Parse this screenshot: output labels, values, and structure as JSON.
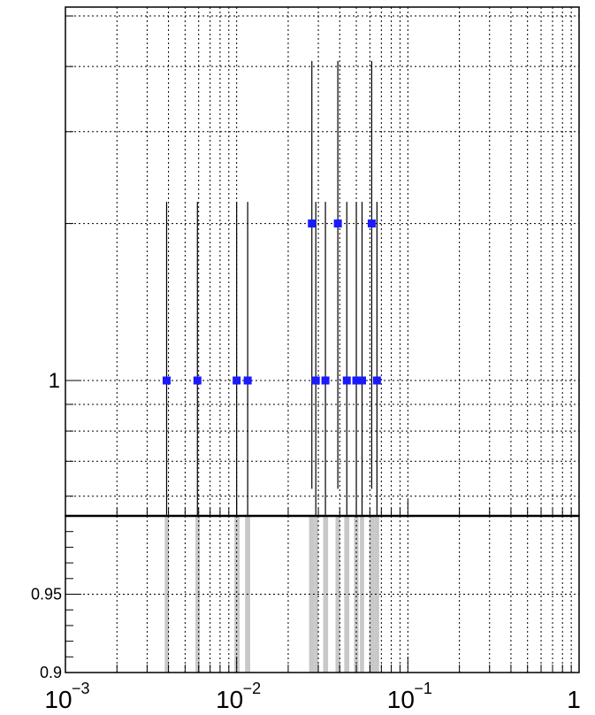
{
  "chart_data": [
    {
      "panel": "top",
      "type": "scatter",
      "title": "",
      "xlabel": "",
      "ylabel": "",
      "xscale": "log",
      "yscale": "log",
      "xlim": [
        0.001,
        1
      ],
      "ylim": [
        0.55,
        5.2
      ],
      "grid": true,
      "y_tick_labels": [
        {
          "value": 1,
          "label": "1"
        }
      ],
      "marker_color": "#1a1aff",
      "errorbar_color": "#000000",
      "points": [
        {
          "x": 0.0039,
          "y": 1,
          "ylow": 0.55,
          "yhigh": 2.2
        },
        {
          "x": 0.0059,
          "y": 1,
          "ylow": 0.55,
          "yhigh": 2.2
        },
        {
          "x": 0.01,
          "y": 1,
          "ylow": 0.55,
          "yhigh": 2.2
        },
        {
          "x": 0.0116,
          "y": 1,
          "ylow": 0.55,
          "yhigh": 2.2
        },
        {
          "x": 0.0275,
          "y": 2,
          "ylow": 0.62,
          "yhigh": 4.1
        },
        {
          "x": 0.029,
          "y": 1,
          "ylow": 0.55,
          "yhigh": 2.2
        },
        {
          "x": 0.033,
          "y": 1,
          "ylow": 0.55,
          "yhigh": 2.2
        },
        {
          "x": 0.039,
          "y": 2,
          "ylow": 0.62,
          "yhigh": 4.1
        },
        {
          "x": 0.044,
          "y": 1,
          "ylow": 0.55,
          "yhigh": 2.2
        },
        {
          "x": 0.05,
          "y": 1,
          "ylow": 0.55,
          "yhigh": 2.2
        },
        {
          "x": 0.054,
          "y": 1,
          "ylow": 0.55,
          "yhigh": 2.2
        },
        {
          "x": 0.0615,
          "y": 2,
          "ylow": 0.62,
          "yhigh": 4.1
        },
        {
          "x": 0.066,
          "y": 1,
          "ylow": 0.55,
          "yhigh": 2.2
        }
      ]
    },
    {
      "panel": "ratio",
      "type": "bar",
      "title": "",
      "xlabel": "",
      "ylabel": "",
      "xscale": "log",
      "xlim": [
        0.001,
        1
      ],
      "ylim": [
        0.9,
        1.0
      ],
      "grid": true,
      "band_color": "#c8c8c8",
      "y_tick_labels": [
        {
          "value": 0.95,
          "label": "0.95"
        },
        {
          "value": 0.9,
          "label": "0.9"
        }
      ],
      "x_tick_labels": [
        {
          "value": 0.001,
          "base": "10",
          "exp": "−3"
        },
        {
          "value": 0.01,
          "base": "10",
          "exp": "−2"
        },
        {
          "value": 0.1,
          "base": "10",
          "exp": "−1"
        },
        {
          "value": 1,
          "base": "1",
          "exp": ""
        }
      ],
      "bands": [
        {
          "x0": 0.0038,
          "x1": 0.00402
        },
        {
          "x0": 0.00575,
          "x1": 0.0061
        },
        {
          "x0": 0.0097,
          "x1": 0.0104
        },
        {
          "x0": 0.0112,
          "x1": 0.012
        },
        {
          "x0": 0.0265,
          "x1": 0.0285
        },
        {
          "x0": 0.0285,
          "x1": 0.03
        },
        {
          "x0": 0.032,
          "x1": 0.0342
        },
        {
          "x0": 0.0378,
          "x1": 0.0402
        },
        {
          "x0": 0.0425,
          "x1": 0.0455
        },
        {
          "x0": 0.0485,
          "x1": 0.0515
        },
        {
          "x0": 0.0525,
          "x1": 0.0555
        },
        {
          "x0": 0.0595,
          "x1": 0.0635
        },
        {
          "x0": 0.0635,
          "x1": 0.068
        }
      ]
    }
  ]
}
